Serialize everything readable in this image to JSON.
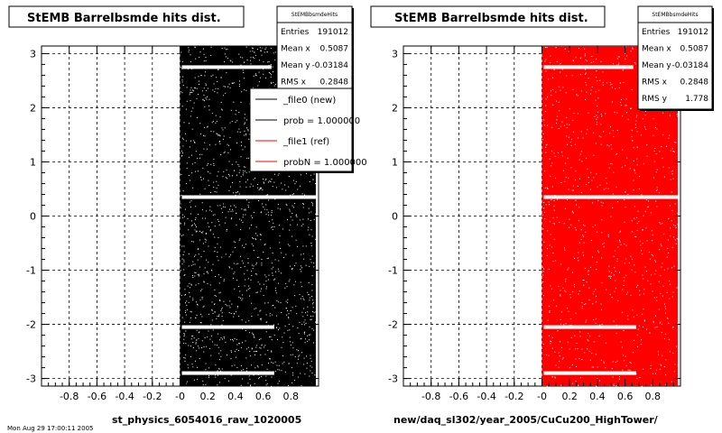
{
  "panels": [
    {
      "title": "StEMB Barrelbsmde hits dist.",
      "xlabel": "st_physics_6054016_raw_1020005",
      "color": "#000000",
      "stats": {
        "header": "StEMBbsmdeHits",
        "rows": [
          {
            "label": "Entries",
            "value": "191012"
          },
          {
            "label": "Mean x",
            "value": "0.5087"
          },
          {
            "label": "Mean y",
            "value": "-0.03184"
          },
          {
            "label": "RMS x",
            "value": "0.2848"
          }
        ]
      },
      "legend": [
        {
          "label": "_file0 (new)",
          "color": "#000000"
        },
        {
          "label": "prob = 1.000000",
          "color": "#000000"
        },
        {
          "label": "_file1 (ref)",
          "color": "#ff0000"
        },
        {
          "label": "probN = 1.000000",
          "color": "#ff0000"
        }
      ]
    },
    {
      "title": "StEMB Barrelbsmde hits dist.",
      "xlabel": "new/daq_sl302/year_2005/CuCu200_HighTower/",
      "color": "#ff0000",
      "stats": {
        "header": "StEMBbsmdeHits",
        "rows": [
          {
            "label": "Entries",
            "value": "191012"
          },
          {
            "label": "Mean x",
            "value": "0.5087"
          },
          {
            "label": "Mean y",
            "value": "-0.03184"
          },
          {
            "label": "RMS x",
            "value": "0.2848"
          },
          {
            "label": "RMS y",
            "value": "1.778"
          }
        ]
      },
      "legend": []
    }
  ],
  "footer_text": "Mon Aug 29 17:00:11 2005",
  "chart_data": [
    {
      "type": "scatter",
      "title": "StEMB Barrelbsmde hits dist.",
      "xlabel": "st_physics_6054016_raw_1020005",
      "ylabel": "",
      "xlim": [
        -1,
        1
      ],
      "ylim": [
        -3.14,
        3.14
      ],
      "x_ticks": [
        "-0.8",
        "-0.6",
        "-0.4",
        "-0.2",
        "-0",
        "0.2",
        "0.4",
        "0.6",
        "0.8"
      ],
      "y_ticks": [
        "-3",
        "-2",
        "-1",
        "0",
        "1",
        "2",
        "3"
      ],
      "grid": true,
      "series": [
        {
          "name": "_file0 (new)",
          "color": "#000000",
          "x_range": [
            0,
            0.98
          ],
          "y_range": [
            -3.14,
            3.14
          ],
          "gap_bands_y": [
            2.75,
            0.35,
            -2.05,
            -2.9
          ]
        }
      ],
      "legend_position": "top-right"
    },
    {
      "type": "scatter",
      "title": "StEMB Barrelbsmde hits dist.",
      "xlabel": "new/daq_sl302/year_2005/CuCu200_HighTower/",
      "ylabel": "",
      "xlim": [
        -1,
        1
      ],
      "ylim": [
        -3.14,
        3.14
      ],
      "x_ticks": [
        "-0.8",
        "-0.6",
        "-0.4",
        "-0.2",
        "-0",
        "0.2",
        "0.4",
        "0.6",
        "0.8"
      ],
      "y_ticks": [
        "-3",
        "-2",
        "-1",
        "0",
        "1",
        "2",
        "3"
      ],
      "grid": true,
      "series": [
        {
          "name": "_file1 (ref)",
          "color": "#ff0000",
          "x_range": [
            0,
            0.98
          ],
          "y_range": [
            -3.14,
            3.14
          ],
          "gap_bands_y": [
            2.75,
            0.35,
            -2.05,
            -2.9
          ]
        }
      ]
    }
  ]
}
